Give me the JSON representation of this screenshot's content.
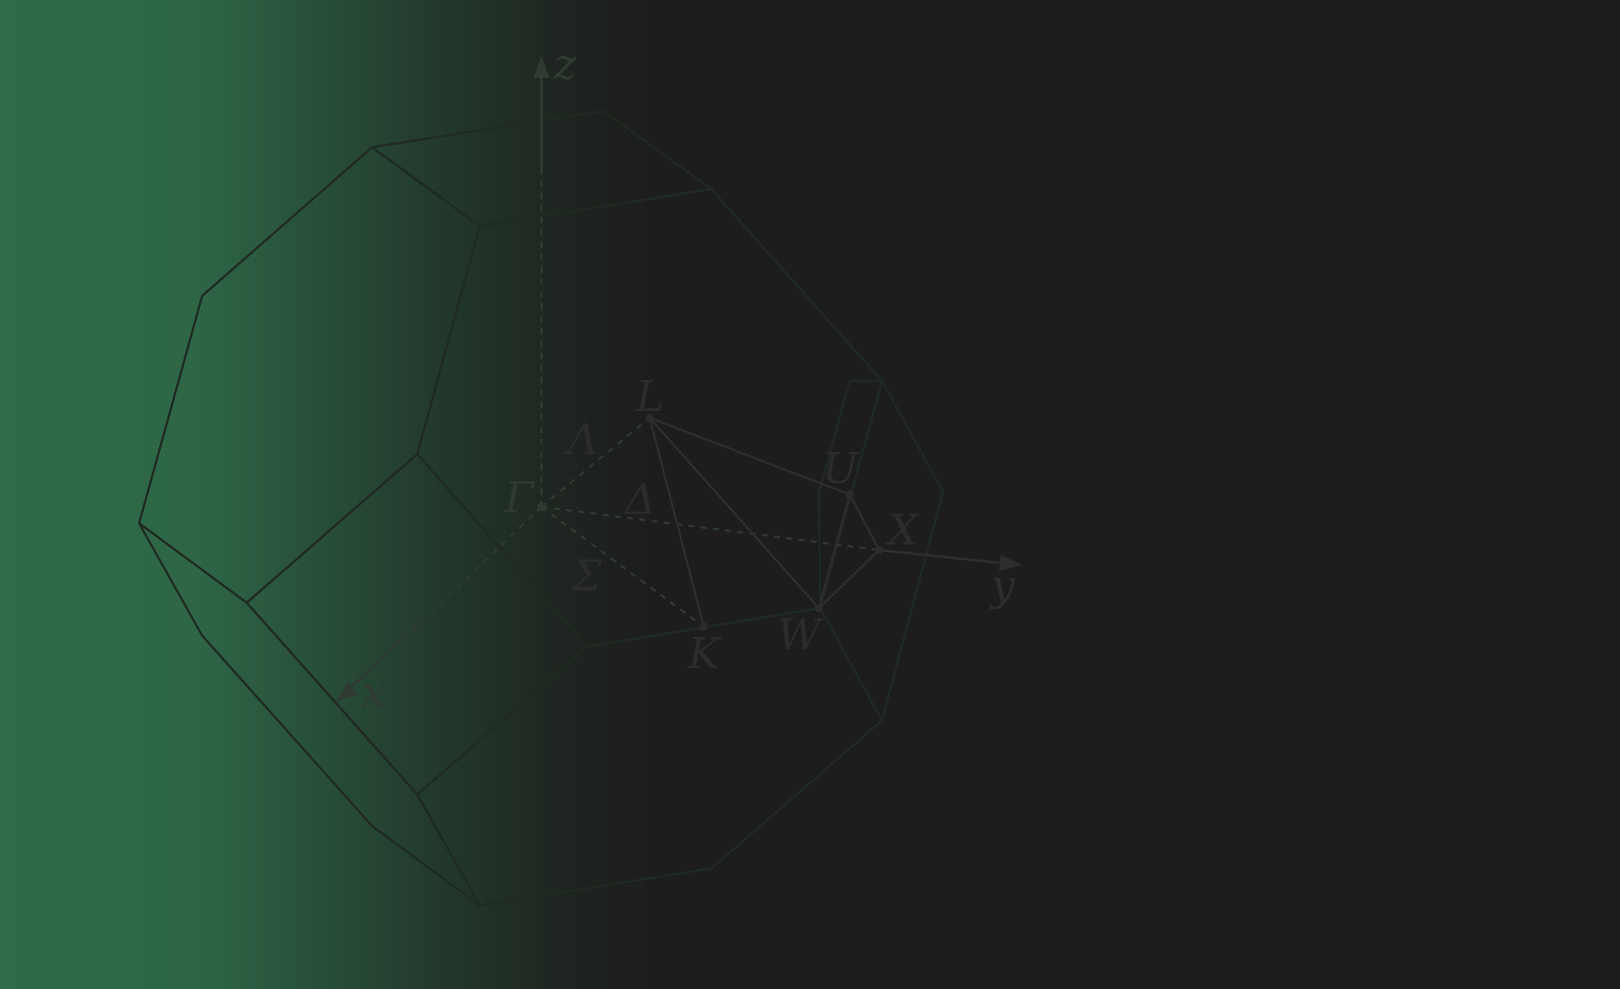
{
  "diagram": {
    "axes": {
      "x": "x",
      "y": "y",
      "z": "z"
    },
    "points": [
      {
        "id": "gamma",
        "label": "Γ"
      },
      {
        "id": "L",
        "label": "L"
      },
      {
        "id": "U",
        "label": "U"
      },
      {
        "id": "X",
        "label": "X"
      },
      {
        "id": "W",
        "label": "W"
      },
      {
        "id": "K",
        "label": "K"
      }
    ],
    "lines": [
      {
        "id": "lambda",
        "label": "Λ"
      },
      {
        "id": "delta",
        "label": "Δ"
      },
      {
        "id": "sigma",
        "label": "Σ"
      }
    ],
    "colors": {
      "background": "#1d1d1d",
      "gradient_green": "#2f6b48",
      "face_green_light": "#58926f",
      "face_gray": "#5a5a5a",
      "label_dark": "#2c2c2c"
    }
  }
}
